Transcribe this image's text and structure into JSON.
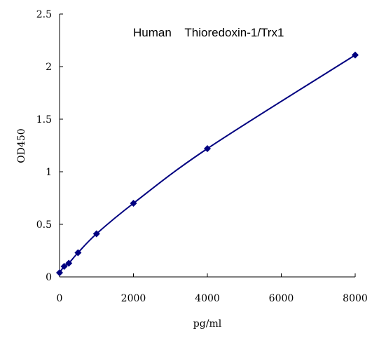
{
  "chart_data": {
    "type": "line",
    "title": "Human    Thioredoxin-1/Trx1",
    "xlabel": "pg/ml",
    "ylabel": "OD450",
    "xlim": [
      0,
      8000
    ],
    "ylim": [
      0,
      2.5
    ],
    "x_ticks": [
      0,
      2000,
      4000,
      6000,
      8000
    ],
    "x_tick_labels": [
      "0",
      "2000",
      "4000",
      "6000",
      "8000"
    ],
    "y_ticks": [
      0,
      0.5,
      1,
      1.5,
      2,
      2.5
    ],
    "y_tick_labels": [
      "0",
      "0.5",
      "1",
      "1.5",
      "2",
      "2.5"
    ],
    "grid": false,
    "legend": false,
    "marker": "diamond",
    "series_color": "#000080",
    "series": [
      {
        "x": [
          0,
          125,
          250,
          500,
          1000,
          2000,
          4000,
          8000
        ],
        "values": [
          0.04,
          0.1,
          0.13,
          0.23,
          0.41,
          0.7,
          1.22,
          2.11
        ]
      }
    ]
  }
}
